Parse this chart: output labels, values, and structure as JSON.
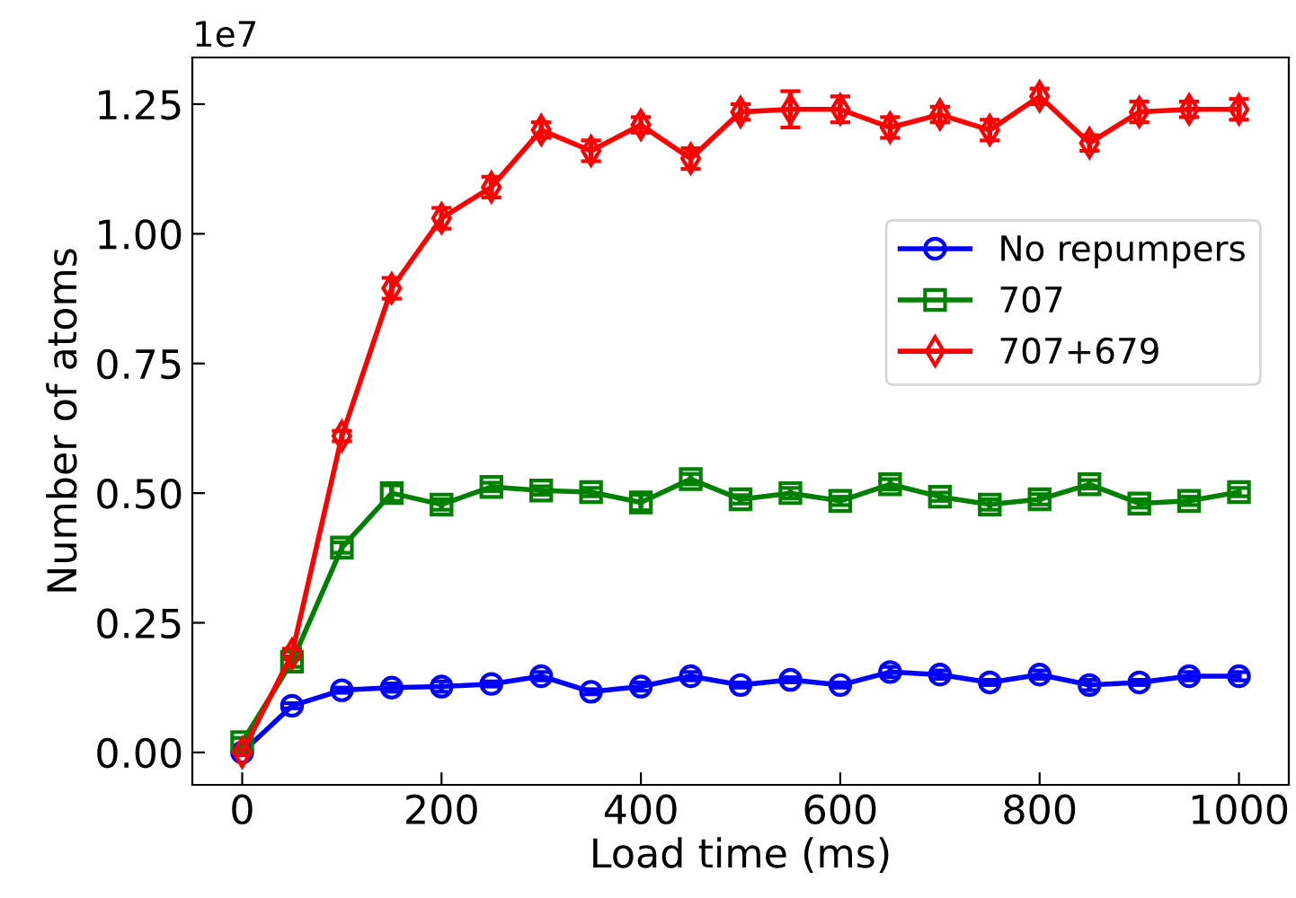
{
  "chart_data": {
    "type": "line",
    "xlabel": "Load time (ms)",
    "ylabel": "Number of atoms",
    "x": [
      0,
      50,
      100,
      150,
      200,
      250,
      300,
      350,
      400,
      450,
      500,
      550,
      600,
      650,
      700,
      750,
      800,
      850,
      900,
      950,
      1000
    ],
    "series": [
      {
        "name": "No repumpers",
        "color": "#0000ff",
        "marker": "circle",
        "values": [
          0.0,
          0.09,
          0.12,
          0.125,
          0.127,
          0.132,
          0.147,
          0.117,
          0.127,
          0.147,
          0.13,
          0.14,
          0.13,
          0.155,
          0.15,
          0.135,
          0.15,
          0.13,
          0.135,
          0.147,
          0.147
        ],
        "errors": [
          0.005,
          0.005,
          0.005,
          0.008,
          0.01,
          0.005,
          0.008,
          0.005,
          0.008,
          0.008,
          0.005,
          0.005,
          0.005,
          0.01,
          0.008,
          0.005,
          0.008,
          0.01,
          0.005,
          0.008,
          0.008
        ]
      },
      {
        "name": "707",
        "color": "#008000",
        "marker": "square",
        "values": [
          0.02,
          0.175,
          0.395,
          0.5,
          0.478,
          0.512,
          0.505,
          0.502,
          0.482,
          0.527,
          0.488,
          0.5,
          0.485,
          0.517,
          0.493,
          0.478,
          0.488,
          0.517,
          0.48,
          0.485,
          0.502
        ],
        "errors": [
          0.008,
          0.01,
          0.01,
          0.015,
          0.01,
          0.008,
          0.008,
          0.008,
          0.015,
          0.01,
          0.008,
          0.01,
          0.008,
          0.01,
          0.008,
          0.01,
          0.01,
          0.008,
          0.008,
          0.008,
          0.008
        ]
      },
      {
        "name": "707+679",
        "color": "#ff0000",
        "marker": "diamond",
        "values": [
          0.0,
          0.19,
          0.61,
          0.895,
          1.03,
          1.09,
          1.2,
          1.16,
          1.21,
          1.145,
          1.235,
          1.24,
          1.24,
          1.205,
          1.23,
          1.2,
          1.265,
          1.175,
          1.235,
          1.24,
          1.24
        ],
        "errors": [
          0.005,
          0.01,
          0.01,
          0.02,
          0.02,
          0.02,
          0.015,
          0.02,
          0.015,
          0.02,
          0.015,
          0.035,
          0.025,
          0.02,
          0.015,
          0.02,
          0.015,
          0.015,
          0.02,
          0.015,
          0.02
        ]
      }
    ],
    "xlim": [
      -50,
      1050
    ],
    "xticks": [
      0,
      200,
      400,
      600,
      800,
      1000
    ],
    "ylim": [
      -0.0625,
      1.34
    ],
    "yticks": [
      {
        "value": 0,
        "label": "0.00"
      },
      0.25,
      {
        "value": 0.5,
        "label": "0.50"
      },
      0.75,
      {
        "value": 1.0,
        "label": "1.00"
      },
      1.25
    ],
    "annotations": [
      "1e7"
    ],
    "legend": "right",
    "grid": false,
    "line_style": "solid"
  }
}
